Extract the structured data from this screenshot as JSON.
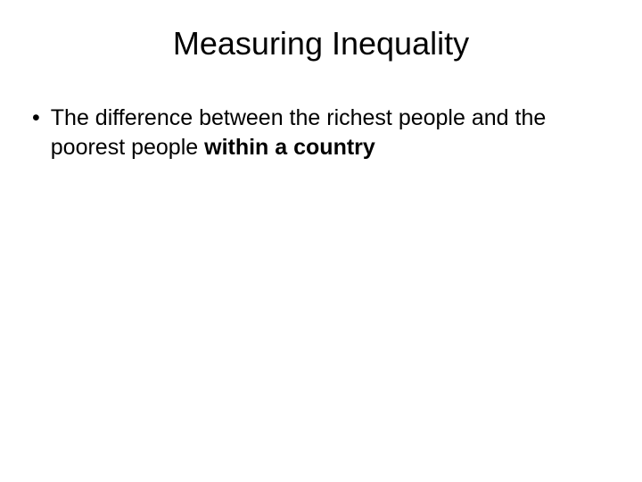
{
  "slide": {
    "title": "Measuring Inequality",
    "title_fontsize": 36,
    "title_color": "#000000",
    "background_color": "#ffffff",
    "bullets": [
      {
        "text_normal": "The difference between the richest people and the poorest people ",
        "text_bold": "within a country",
        "fontsize": 25,
        "marker": "•"
      }
    ]
  }
}
